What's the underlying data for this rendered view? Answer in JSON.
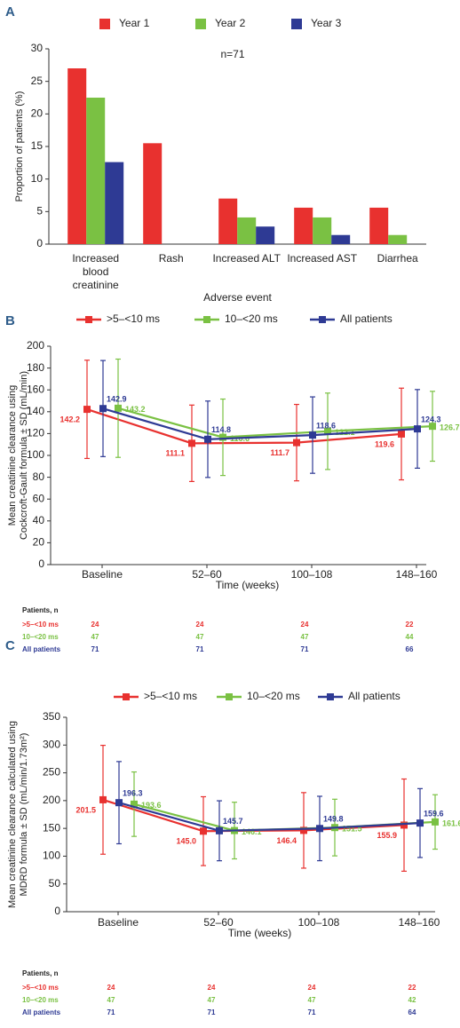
{
  "chart_data": [
    {
      "type": "bar",
      "panel": "A",
      "annotation": "n=71",
      "categories": [
        "Increased blood creatinine",
        "Rash",
        "Increased ALT",
        "Increased AST",
        "Diarrhea"
      ],
      "series": [
        {
          "name": "Year 1",
          "color": "#e8312f",
          "values": [
            27,
            15.5,
            7,
            5.6,
            5.6
          ]
        },
        {
          "name": "Year 2",
          "color": "#7ac143",
          "values": [
            22.5,
            0,
            4.1,
            4.1,
            1.4
          ]
        },
        {
          "name": "Year 3",
          "color": "#2e3a94",
          "values": [
            12.6,
            0,
            2.7,
            1.4,
            0
          ]
        }
      ],
      "x_label": "Adverse event",
      "y_label": "Proportion of patients (%)",
      "ylim": [
        0,
        30
      ],
      "yticks": [
        0,
        5,
        10,
        15,
        20,
        25,
        30
      ]
    },
    {
      "type": "line",
      "panel": "B",
      "categories": [
        "Baseline",
        "52–60",
        "100–108",
        "148–160"
      ],
      "series": [
        {
          "name": ">5–<10 ms",
          "color": "#e8312f",
          "values": [
            142.2,
            111.1,
            111.7,
            119.6
          ],
          "errors": [
            45,
            35,
            35,
            42
          ]
        },
        {
          "name": "10–<20 ms",
          "color": "#7ac143",
          "values": [
            143.2,
            116.6,
            122.1,
            126.7
          ],
          "errors": [
            45,
            35,
            35,
            32
          ]
        },
        {
          "name": "All patients",
          "color": "#2e3a94",
          "values": [
            142.9,
            114.8,
            118.6,
            124.3
          ],
          "errors": [
            44,
            35,
            35,
            36
          ]
        }
      ],
      "x_label": "Time (weeks)",
      "y_label": "Mean creatinine clearance using Cockcroft-Gault formula ± SD (mL/min)",
      "ylim": [
        0,
        200
      ],
      "yticks": [
        0,
        20,
        40,
        60,
        80,
        100,
        120,
        140,
        160,
        180,
        200
      ],
      "table": {
        "title": "Patients, n",
        "rows": [
          {
            "label": ">5–<10 ms",
            "values": [
              24,
              24,
              24,
              22
            ]
          },
          {
            "label": "10–<20 ms",
            "values": [
              47,
              47,
              47,
              44
            ]
          },
          {
            "label": "All patients",
            "values": [
              71,
              71,
              71,
              66
            ]
          }
        ]
      }
    },
    {
      "type": "line",
      "panel": "C",
      "categories": [
        "Baseline",
        "52–60",
        "100–108",
        "148–160"
      ],
      "series": [
        {
          "name": ">5–<10 ms",
          "color": "#e8312f",
          "values": [
            201.5,
            145.0,
            146.4,
            155.9
          ],
          "value_labels": [
            "201.5",
            "145.0",
            "146.4",
            "155.9"
          ],
          "errors": [
            98,
            62,
            68,
            83
          ]
        },
        {
          "name": "10–<20 ms",
          "color": "#7ac143",
          "values": [
            193.6,
            146.1,
            151.5,
            161.6
          ],
          "errors": [
            58,
            51,
            51,
            49
          ]
        },
        {
          "name": "All patients",
          "color": "#2e3a94",
          "values": [
            196.3,
            145.7,
            149.8,
            159.6
          ],
          "errors": [
            74,
            54,
            58,
            62
          ]
        }
      ],
      "x_label": "Time (weeks)",
      "y_label": "Mean creatinine clearance calculated using MDRD formula ± SD (mL/min/1.73m²)",
      "ylim": [
        0,
        350
      ],
      "yticks": [
        0,
        50,
        100,
        150,
        200,
        250,
        300,
        350
      ],
      "table": {
        "title": "Patients, n",
        "rows": [
          {
            "label": ">5–<10 ms",
            "values": [
              24,
              24,
              24,
              22
            ]
          },
          {
            "label": "10–<20 ms",
            "values": [
              47,
              47,
              47,
              42
            ]
          },
          {
            "label": "All patients",
            "values": [
              71,
              71,
              71,
              64
            ]
          }
        ]
      }
    }
  ]
}
